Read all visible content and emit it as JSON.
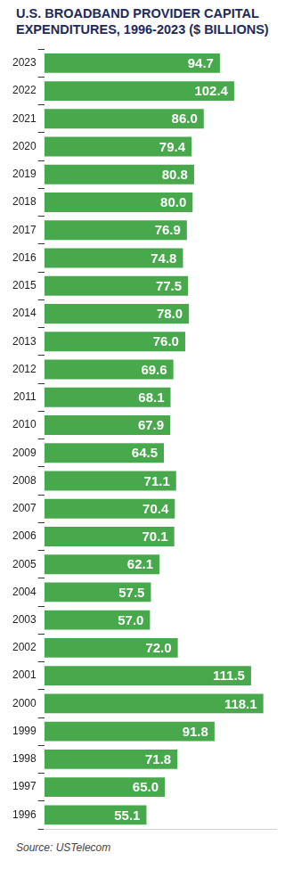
{
  "chart_data": {
    "type": "bar",
    "orientation": "horizontal",
    "title": "U.S. BROADBAND PROVIDER CAPITAL EXPENDITURES, 1996-2023 ($ BILLIONS)",
    "source": "Source: USTelecom",
    "categories": [
      "2023",
      "2022",
      "2021",
      "2020",
      "2019",
      "2018",
      "2017",
      "2016",
      "2015",
      "2014",
      "2013",
      "2012",
      "2011",
      "2010",
      "2009",
      "2008",
      "2007",
      "2006",
      "2005",
      "2004",
      "2003",
      "2002",
      "2001",
      "2000",
      "1999",
      "1998",
      "1997",
      "1996"
    ],
    "values": [
      94.7,
      102.4,
      86.0,
      79.4,
      80.8,
      80.0,
      76.9,
      74.8,
      77.5,
      78.0,
      76.0,
      69.6,
      68.1,
      67.9,
      64.5,
      71.1,
      70.4,
      70.1,
      62.1,
      57.5,
      57.0,
      72.0,
      111.5,
      118.1,
      91.8,
      71.8,
      65.0,
      55.1
    ],
    "value_labels": [
      "94.7",
      "102.4",
      "86.0",
      "79.4",
      "80.8",
      "80.0",
      "76.9",
      "74.8",
      "77.5",
      "78.0",
      "76.0",
      "69.6",
      "68.1",
      "67.9",
      "64.5",
      "71.1",
      "70.4",
      "70.1",
      "62.1",
      "57.5",
      "57.0",
      "72.0",
      "111.5",
      "118.1",
      "91.8",
      "71.8",
      "65.0",
      "55.1"
    ],
    "color": "#48a84c",
    "xlim": [
      0,
      125
    ],
    "grid": false,
    "data_labels": true,
    "tick_labels": "y"
  }
}
